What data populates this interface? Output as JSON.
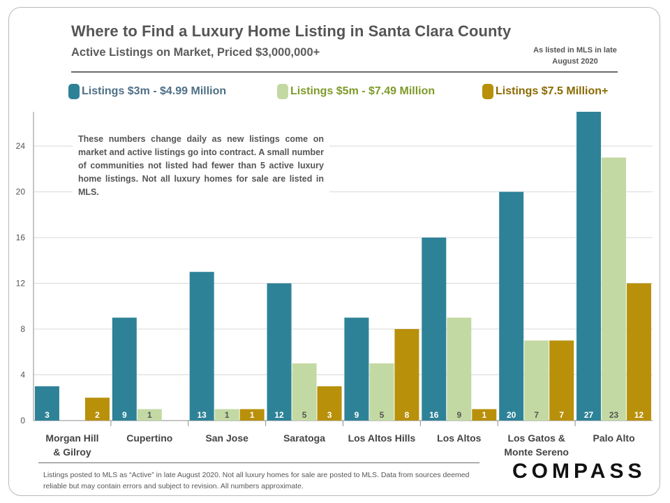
{
  "header": {
    "title": "Where to Find a Luxury Home Listing in Santa Clara County",
    "subtitle": "Active Listings on Market, Priced $3,000,000+",
    "as_of": "As listed in MLS in late August 2020"
  },
  "note": "These numbers change daily as new listings come on market and active listings go into contract. A small number of communities not listed had fewer than 5 active luxury home listings. Not all luxury homes for sale are listed in MLS.",
  "footer": "Listings posted to MLS as “Active” in late August 2020. Not all luxury homes for sale are posted to MLS. Data from sources deemed reliable but may contain errors and subject to revision. All numbers approximate.",
  "brand": "COMPASS",
  "colors": {
    "series1": "#2e8297",
    "series2": "#c3d9a3",
    "series3": "#b8900a",
    "text": "#555555",
    "legend_text1": "#4e6f86",
    "legend_text2": "#7e9a28",
    "legend_text3": "#8a6a00"
  },
  "chart_data": {
    "type": "bar",
    "categories": [
      "Morgan Hill\n& Gilroy",
      "Cupertino",
      "San Jose",
      "Saratoga",
      "Los Altos Hills",
      "Los Altos",
      "Los Gatos &\nMonte Sereno",
      "Palo Alto"
    ],
    "series": [
      {
        "name": "Listings $3m - $4.99 Million",
        "values": [
          3,
          9,
          13,
          12,
          9,
          16,
          20,
          27
        ],
        "labels": [
          "3",
          "9",
          "13",
          "12",
          "9",
          "16",
          "20",
          "27"
        ]
      },
      {
        "name": "Listings $5m - $7.49 Million",
        "values": [
          0,
          1,
          1,
          5,
          5,
          9,
          7,
          23
        ],
        "labels": [
          "",
          "1",
          "1",
          "5",
          "5",
          "9",
          "7",
          "23"
        ]
      },
      {
        "name": "Listings $7.5 Million+",
        "values": [
          2,
          0,
          1,
          3,
          8,
          1,
          7,
          12
        ],
        "labels": [
          "2",
          "",
          "1",
          "3",
          "8",
          "1",
          "7",
          "12"
        ]
      }
    ],
    "yticks": [
      "0",
      "4",
      "8",
      "12",
      "16",
      "20",
      "24"
    ],
    "ylim": [
      0,
      27
    ],
    "grid": true,
    "legend": "top"
  }
}
